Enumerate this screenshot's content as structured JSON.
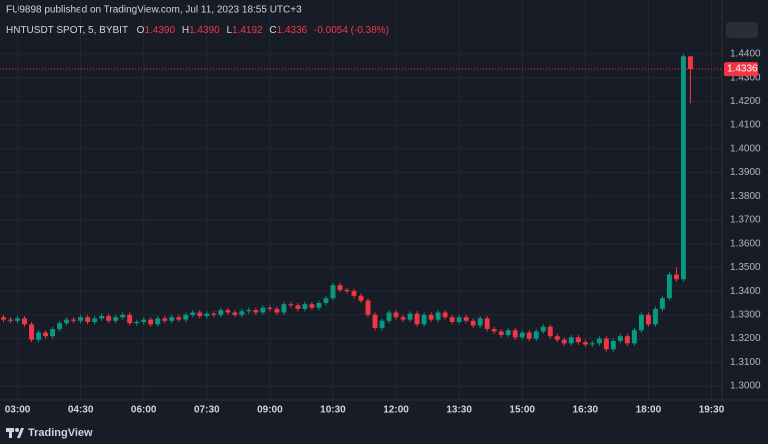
{
  "header": {
    "text": "FU9898 published on TradingView.com, Jul 11, 2023 18:55 UTC+3"
  },
  "legend": {
    "symbol": "HNTUSDT SPOT, 5, BYBIT",
    "open_key": "O",
    "open": "1.4390",
    "high_key": "H",
    "high": "1.4390",
    "low_key": "L",
    "low": "1.4192",
    "close_key": "C",
    "close": "1.4336",
    "change": "-0.0054 (-0.38%)"
  },
  "footer": {
    "brand": "TradingView"
  },
  "chart_data": {
    "type": "candlestick",
    "up_color": "#089981",
    "down_color": "#f23645",
    "grid": true,
    "last_price": 1.4336,
    "xlim": [
      -0.5,
      102.5
    ],
    "xticks": [
      {
        "value": 2,
        "label": "03:00"
      },
      {
        "value": 11,
        "label": "04:30"
      },
      {
        "value": 20,
        "label": "06:00"
      },
      {
        "value": 29,
        "label": "07:30"
      },
      {
        "value": 38,
        "label": "09:00"
      },
      {
        "value": 47,
        "label": "10:30"
      },
      {
        "value": 56,
        "label": "12:00"
      },
      {
        "value": 65,
        "label": "13:30"
      },
      {
        "value": 74,
        "label": "15:00"
      },
      {
        "value": 83,
        "label": "16:30"
      },
      {
        "value": 92,
        "label": "18:00"
      },
      {
        "value": 101,
        "label": "19:30"
      }
    ],
    "ylim": [
      1.2941,
      1.4543
    ],
    "yticks": [
      {
        "value": 1.3,
        "label": "1.3000"
      },
      {
        "value": 1.31,
        "label": "1.3100"
      },
      {
        "value": 1.32,
        "label": "1.3200"
      },
      {
        "value": 1.33,
        "label": "1.3300"
      },
      {
        "value": 1.34,
        "label": "1.3400"
      },
      {
        "value": 1.35,
        "label": "1.3500"
      },
      {
        "value": 1.36,
        "label": "1.3600"
      },
      {
        "value": 1.37,
        "label": "1.3700"
      },
      {
        "value": 1.38,
        "label": "1.3800"
      },
      {
        "value": 1.39,
        "label": "1.3900"
      },
      {
        "value": 1.4,
        "label": "1.4000"
      },
      {
        "value": 1.41,
        "label": "1.4100"
      },
      {
        "value": 1.42,
        "label": "1.4200"
      },
      {
        "value": 1.43,
        "label": "1.4300"
      },
      {
        "value": 1.44,
        "label": "1.4400"
      }
    ],
    "open": [
      1.329,
      1.328,
      1.3275,
      1.3285,
      1.326,
      1.3195,
      1.3225,
      1.321,
      1.324,
      1.3265,
      1.328,
      1.3275,
      1.329,
      1.327,
      1.3285,
      1.3295,
      1.3275,
      1.329,
      1.33,
      1.3265,
      1.327,
      1.328,
      1.326,
      1.3285,
      1.3275,
      1.329,
      1.328,
      1.33,
      1.331,
      1.3295,
      1.3305,
      1.33,
      1.332,
      1.331,
      1.33,
      1.3315,
      1.332,
      1.331,
      1.333,
      1.3325,
      1.331,
      1.3345,
      1.334,
      1.3325,
      1.3345,
      1.333,
      1.335,
      1.337,
      1.3425,
      1.3405,
      1.34,
      1.338,
      1.336,
      1.33,
      1.3245,
      1.3275,
      1.331,
      1.329,
      1.328,
      1.3305,
      1.326,
      1.33,
      1.328,
      1.331,
      1.329,
      1.327,
      1.329,
      1.3275,
      1.3255,
      1.3285,
      1.324,
      1.323,
      1.3215,
      1.3235,
      1.3205,
      1.3225,
      1.32,
      1.323,
      1.325,
      1.321,
      1.3195,
      1.318,
      1.3205,
      1.3185,
      1.3175,
      1.318,
      1.32,
      1.3155,
      1.319,
      1.321,
      1.318,
      1.3235,
      1.33,
      1.326,
      1.3325,
      1.337,
      1.347,
      1.345,
      1.439
    ],
    "high": [
      1.33,
      1.329,
      1.3295,
      1.3295,
      1.327,
      1.3235,
      1.3235,
      1.325,
      1.3275,
      1.329,
      1.329,
      1.33,
      1.33,
      1.3295,
      1.3305,
      1.3305,
      1.33,
      1.331,
      1.331,
      1.328,
      1.329,
      1.329,
      1.3295,
      1.3295,
      1.33,
      1.33,
      1.331,
      1.332,
      1.332,
      1.3315,
      1.3315,
      1.333,
      1.333,
      1.332,
      1.3325,
      1.333,
      1.333,
      1.334,
      1.334,
      1.3335,
      1.3355,
      1.3355,
      1.335,
      1.3355,
      1.3355,
      1.336,
      1.338,
      1.3435,
      1.3435,
      1.3415,
      1.341,
      1.339,
      1.337,
      1.331,
      1.3285,
      1.332,
      1.332,
      1.33,
      1.3315,
      1.3315,
      1.331,
      1.331,
      1.332,
      1.332,
      1.33,
      1.33,
      1.33,
      1.3285,
      1.3295,
      1.3295,
      1.325,
      1.324,
      1.3245,
      1.3245,
      1.3235,
      1.3235,
      1.324,
      1.326,
      1.326,
      1.322,
      1.3205,
      1.3215,
      1.3215,
      1.3195,
      1.319,
      1.321,
      1.321,
      1.32,
      1.322,
      1.322,
      1.3245,
      1.331,
      1.331,
      1.3335,
      1.338,
      1.348,
      1.35,
      1.44,
      1.439
    ],
    "low": [
      1.327,
      1.3265,
      1.3265,
      1.325,
      1.3185,
      1.3185,
      1.32,
      1.32,
      1.323,
      1.3255,
      1.3265,
      1.3265,
      1.326,
      1.326,
      1.3275,
      1.3265,
      1.3265,
      1.328,
      1.3255,
      1.3255,
      1.326,
      1.325,
      1.325,
      1.3265,
      1.3265,
      1.327,
      1.327,
      1.329,
      1.3285,
      1.3285,
      1.329,
      1.329,
      1.33,
      1.329,
      1.329,
      1.3305,
      1.33,
      1.33,
      1.3315,
      1.33,
      1.33,
      1.333,
      1.3315,
      1.3315,
      1.332,
      1.332,
      1.334,
      1.336,
      1.3395,
      1.339,
      1.337,
      1.335,
      1.329,
      1.3235,
      1.3235,
      1.3265,
      1.328,
      1.327,
      1.327,
      1.325,
      1.325,
      1.327,
      1.327,
      1.328,
      1.326,
      1.326,
      1.3265,
      1.3245,
      1.3245,
      1.323,
      1.322,
      1.3205,
      1.3205,
      1.3195,
      1.3195,
      1.319,
      1.319,
      1.322,
      1.32,
      1.3185,
      1.317,
      1.317,
      1.3175,
      1.3165,
      1.3165,
      1.317,
      1.3145,
      1.3145,
      1.318,
      1.317,
      1.317,
      1.3225,
      1.325,
      1.325,
      1.3315,
      1.336,
      1.344,
      1.344,
      1.4192
    ],
    "close": [
      1.328,
      1.3275,
      1.3285,
      1.326,
      1.3195,
      1.3225,
      1.321,
      1.324,
      1.3265,
      1.328,
      1.3275,
      1.329,
      1.327,
      1.3285,
      1.3295,
      1.3275,
      1.329,
      1.33,
      1.3265,
      1.327,
      1.328,
      1.326,
      1.3285,
      1.3275,
      1.329,
      1.328,
      1.33,
      1.331,
      1.3295,
      1.3305,
      1.33,
      1.332,
      1.331,
      1.33,
      1.3315,
      1.332,
      1.331,
      1.333,
      1.3325,
      1.331,
      1.3345,
      1.334,
      1.3325,
      1.3345,
      1.333,
      1.335,
      1.337,
      1.3425,
      1.3405,
      1.34,
      1.338,
      1.336,
      1.33,
      1.3245,
      1.3275,
      1.331,
      1.329,
      1.328,
      1.3305,
      1.326,
      1.33,
      1.328,
      1.331,
      1.329,
      1.327,
      1.329,
      1.3275,
      1.3255,
      1.3285,
      1.324,
      1.323,
      1.3215,
      1.3235,
      1.3205,
      1.3225,
      1.32,
      1.323,
      1.325,
      1.321,
      1.3195,
      1.318,
      1.3205,
      1.3185,
      1.3175,
      1.318,
      1.32,
      1.3155,
      1.319,
      1.321,
      1.318,
      1.3235,
      1.33,
      1.326,
      1.3325,
      1.337,
      1.347,
      1.345,
      1.439,
      1.4336
    ]
  }
}
